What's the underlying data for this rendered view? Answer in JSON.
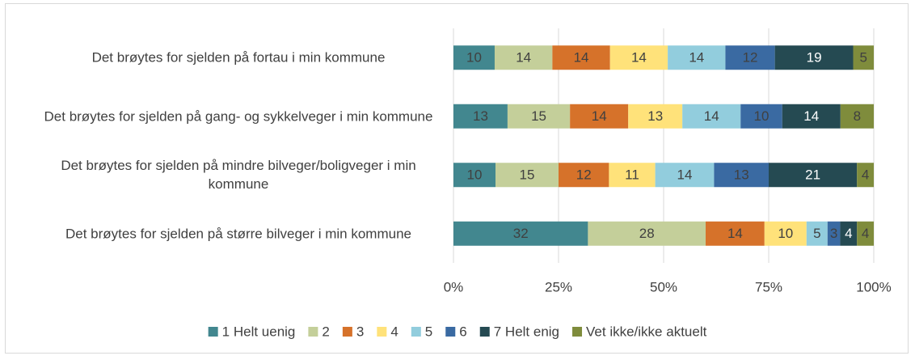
{
  "chart_data": {
    "type": "bar",
    "orientation": "horizontal",
    "stack": "percent",
    "categories": [
      "Det brøytes for sjelden på fortau i min kommune",
      "Det brøytes for sjelden på gang- og sykkelveger i min kommune",
      "Det brøytes for sjelden på mindre bilveger/boligveger i min kommune",
      "Det brøytes for sjelden på større bilveger i min kommune"
    ],
    "series": [
      {
        "name": "1 Helt uenig",
        "color": "#42878f",
        "values": [
          10,
          13,
          10,
          32
        ]
      },
      {
        "name": "2",
        "color": "#c4cf9a",
        "values": [
          14,
          15,
          15,
          28
        ]
      },
      {
        "name": "3",
        "color": "#d6722a",
        "values": [
          14,
          14,
          12,
          14
        ]
      },
      {
        "name": "4",
        "color": "#ffe27a",
        "values": [
          14,
          13,
          11,
          10
        ]
      },
      {
        "name": "5",
        "color": "#92cddd",
        "values": [
          14,
          14,
          14,
          5
        ]
      },
      {
        "name": "6",
        "color": "#3a6aa2",
        "values": [
          12,
          10,
          13,
          3
        ]
      },
      {
        "name": "7 Helt enig",
        "color": "#254a52",
        "values": [
          19,
          14,
          21,
          4
        ]
      },
      {
        "name": "Vet ikke/ikke aktuelt",
        "color": "#7f8c3c",
        "values": [
          5,
          8,
          4,
          4
        ]
      }
    ],
    "xlim": [
      0,
      100
    ],
    "xticks": [
      {
        "value": 0,
        "label": "0%"
      },
      {
        "value": 25,
        "label": "25%"
      },
      {
        "value": 50,
        "label": "50%"
      },
      {
        "value": 75,
        "label": "75%"
      },
      {
        "value": 100,
        "label": "100%"
      }
    ],
    "grid": true,
    "legend": "bottom"
  }
}
